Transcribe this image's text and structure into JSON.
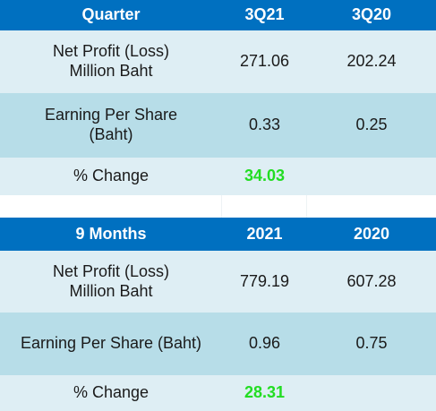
{
  "quarter_table": {
    "headers": [
      "Quarter",
      "3Q21",
      "3Q20"
    ],
    "rows": [
      {
        "label_line1": "Net Profit (Loss)",
        "label_line2": "Million Baht",
        "v1": "271.06",
        "v2": "202.24"
      },
      {
        "label_line1": "Earning Per Share",
        "label_line2": "(Baht)",
        "v1": "0.33",
        "v2": "0.25"
      }
    ],
    "change_label": "% Change",
    "change_value": "34.03"
  },
  "nine_month_table": {
    "headers": [
      "9 Months",
      "2021",
      "2020"
    ],
    "rows": [
      {
        "label_line1": "Net Profit (Loss)",
        "label_line2": "Million Baht",
        "v1": "779.19",
        "v2": "607.28"
      },
      {
        "label": "Earning Per Share (Baht)",
        "v1": "0.96",
        "v2": "0.75"
      }
    ],
    "change_label": "% Change",
    "change_value": "28.31"
  },
  "colors": {
    "header_bg": "#0070c0",
    "header_text": "#ffffff",
    "row_light": "#deeef4",
    "row_dark": "#b7dde8",
    "change_value": "#22dd22"
  }
}
